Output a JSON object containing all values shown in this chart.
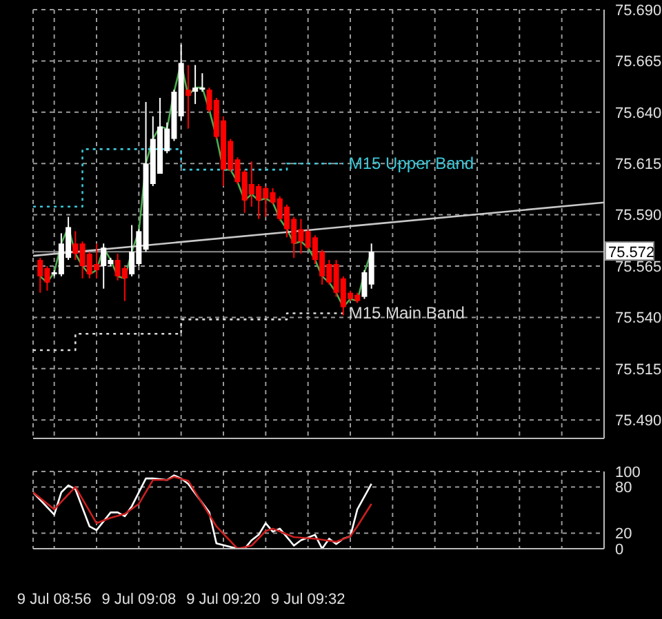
{
  "chart_data": [
    {
      "type": "candlestick",
      "x": [
        "--07-09T08:54",
        "--07-09T08:55",
        "--07-09T08:56",
        "--07-09T08:57",
        "--07-09T08:58",
        "--07-09T08:59",
        "--07-09T09:00",
        "--07-09T09:01",
        "--07-09T09:02",
        "--07-09T09:03",
        "--07-09T09:04",
        "--07-09T09:05",
        "--07-09T09:06",
        "--07-09T09:07",
        "--07-09T09:08",
        "--07-09T09:09",
        "--07-09T09:10",
        "--07-09T09:11",
        "--07-09T09:12",
        "--07-09T09:13",
        "--07-09T09:14",
        "--07-09T09:15",
        "--07-09T09:16",
        "--07-09T09:17",
        "--07-09T09:18",
        "--07-09T09:19",
        "--07-09T09:20",
        "--07-09T09:21",
        "--07-09T09:22",
        "--07-09T09:23",
        "--07-09T09:24",
        "--07-09T09:25",
        "--07-09T09:26",
        "--07-09T09:27",
        "--07-09T09:28",
        "--07-09T09:29",
        "--07-09T09:30",
        "--07-09T09:31",
        "--07-09T09:32",
        "--07-09T09:33",
        "--07-09T09:34",
        "--07-09T09:35",
        "--07-09T09:36",
        "--07-09T09:37",
        "--07-09T09:38",
        "--07-09T09:39",
        "--07-09T09:40",
        "--07-09T09:41"
      ],
      "ohlc": [
        [
          75.568,
          75.569,
          75.552,
          75.56
        ],
        [
          75.564,
          75.565,
          75.553,
          75.557
        ],
        [
          75.561,
          75.563,
          75.56,
          75.562
        ],
        [
          75.561,
          75.581,
          75.56,
          75.576
        ],
        [
          75.569,
          75.589,
          75.568,
          75.584
        ],
        [
          75.576,
          75.582,
          75.568,
          75.571
        ],
        [
          75.576,
          75.577,
          75.559,
          75.565
        ],
        [
          75.571,
          75.572,
          75.559,
          75.561
        ],
        [
          75.566,
          75.576,
          75.559,
          75.563
        ],
        [
          75.565,
          75.576,
          75.554,
          75.574
        ],
        [
          75.566,
          75.569,
          75.565,
          75.568
        ],
        [
          75.568,
          75.571,
          75.558,
          75.56
        ],
        [
          75.564,
          75.565,
          75.548,
          75.559
        ],
        [
          75.561,
          75.585,
          75.56,
          75.572
        ],
        [
          75.566,
          75.583,
          75.565,
          75.582
        ],
        [
          75.573,
          75.645,
          75.572,
          75.615
        ],
        [
          75.605,
          75.638,
          75.604,
          75.627
        ],
        [
          75.61,
          75.647,
          75.61,
          75.633
        ],
        [
          75.621,
          75.635,
          75.62,
          75.632
        ],
        [
          75.627,
          75.651,
          75.626,
          75.65
        ],
        [
          75.638,
          75.673,
          75.636,
          75.664
        ],
        [
          75.651,
          75.663,
          75.632,
          75.648
        ],
        [
          75.65,
          75.663,
          75.644,
          75.652
        ],
        [
          75.651,
          75.659,
          75.65,
          75.652
        ],
        [
          75.651,
          75.652,
          75.64,
          75.641
        ],
        [
          75.646,
          75.647,
          75.627,
          75.628
        ],
        [
          75.636,
          75.638,
          75.604,
          75.612
        ],
        [
          75.626,
          75.627,
          75.611,
          75.612
        ],
        [
          75.617,
          75.618,
          75.605,
          75.606
        ],
        [
          75.611,
          75.612,
          75.591,
          75.597
        ],
        [
          75.605,
          75.616,
          75.594,
          75.6
        ],
        [
          75.604,
          75.605,
          75.588,
          75.597
        ],
        [
          75.603,
          75.604,
          75.589,
          75.598
        ],
        [
          75.601,
          75.603,
          75.595,
          75.596
        ],
        [
          75.598,
          75.599,
          75.587,
          75.588
        ],
        [
          75.594,
          75.595,
          75.579,
          75.583
        ],
        [
          75.588,
          75.589,
          75.569,
          75.576
        ],
        [
          75.583,
          75.588,
          75.571,
          75.577
        ],
        [
          75.582,
          75.583,
          75.573,
          75.574
        ],
        [
          75.579,
          75.58,
          75.566,
          75.568
        ],
        [
          75.572,
          75.573,
          75.556,
          75.56
        ],
        [
          75.566,
          75.568,
          75.556,
          75.557
        ],
        [
          75.566,
          75.568,
          75.55,
          75.552
        ],
        [
          75.559,
          75.56,
          75.541,
          75.545
        ],
        [
          75.552,
          75.553,
          75.548,
          75.549
        ],
        [
          75.551,
          75.552,
          75.547,
          75.548
        ],
        [
          75.55,
          75.563,
          75.549,
          75.562
        ],
        [
          75.556,
          75.576,
          75.554,
          75.572
        ]
      ],
      "colors": [
        "#ff0000",
        "#ff0000",
        "#ffffff",
        "#ffffff",
        "#ffffff",
        "#ff0000",
        "#ff0000",
        "#ff0000",
        "#ff0000",
        "#ffffff",
        "#ffffff",
        "#ff0000",
        "#ff0000",
        "#ffffff",
        "#ffffff",
        "#ffffff",
        "#ffffff",
        "#ffffff",
        "#ffffff",
        "#ffffff",
        "#ffffff",
        "#ff0000",
        "#ffffff",
        "#ffffff",
        "#ff0000",
        "#ff0000",
        "#ff0000",
        "#ff0000",
        "#ff0000",
        "#ff0000",
        "#ff0000",
        "#ff0000",
        "#ff0000",
        "#ff0000",
        "#ff0000",
        "#ff0000",
        "#ff0000",
        "#ff0000",
        "#ff0000",
        "#ff0000",
        "#ff0000",
        "#ff0000",
        "#ff0000",
        "#ff0000",
        "#ff0000",
        "#ff0000",
        "#ffffff",
        "#ffffff"
      ],
      "series": [
        {
          "type": "line",
          "color": "#4caf50",
          "x": [
            "--07-09T08:54",
            "--07-09T08:55",
            "--07-09T08:56",
            "--07-09T08:57",
            "--07-09T08:58",
            "--07-09T08:59",
            "--07-09T09:00",
            "--07-09T09:01",
            "--07-09T09:02",
            "--07-09T09:03",
            "--07-09T09:04",
            "--07-09T09:05",
            "--07-09T09:06",
            "--07-09T09:07",
            "--07-09T09:08",
            "--07-09T09:09",
            "--07-09T09:10",
            "--07-09T09:11",
            "--07-09T09:12",
            "--07-09T09:13",
            "--07-09T09:14",
            "--07-09T09:15",
            "--07-09T09:16",
            "--07-09T09:17",
            "--07-09T09:18",
            "--07-09T09:19",
            "--07-09T09:20",
            "--07-09T09:21",
            "--07-09T09:22",
            "--07-09T09:23",
            "--07-09T09:24",
            "--07-09T09:25",
            "--07-09T09:26",
            "--07-09T09:27",
            "--07-09T09:28",
            "--07-09T09:29",
            "--07-09T09:30",
            "--07-09T09:31",
            "--07-09T09:32",
            "--07-09T09:33",
            "--07-09T09:34",
            "--07-09T09:35",
            "--07-09T09:36",
            "--07-09T09:37",
            "--07-09T09:38",
            "--07-09T09:39",
            "--07-09T09:40",
            "--07-09T09:41"
          ],
          "values": [
            75.56,
            75.557,
            75.562,
            75.576,
            75.584,
            75.571,
            75.565,
            75.561,
            75.563,
            75.574,
            75.568,
            75.56,
            75.559,
            75.572,
            75.582,
            75.615,
            75.627,
            75.633,
            75.632,
            75.65,
            75.664,
            75.648,
            75.652,
            75.652,
            75.641,
            75.628,
            75.612,
            75.612,
            75.606,
            75.597,
            75.6,
            75.597,
            75.598,
            75.596,
            75.588,
            75.583,
            75.576,
            75.577,
            75.574,
            75.568,
            75.56,
            75.557,
            75.552,
            75.545,
            75.549,
            75.548,
            75.562,
            75.572
          ]
        },
        {
          "type": "line",
          "color": "#c8c8c8",
          "x": [
            "--07-09T08:53",
            "--07-09T10:14"
          ],
          "values": [
            75.57,
            75.596
          ]
        },
        {
          "type": "step",
          "name": "M15 Upper Band",
          "color": "#3cc8d8",
          "line_style": "dotted",
          "x": [
            "--07-09T08:53",
            "--07-09T09:00",
            "--07-09T09:14",
            "--07-09T09:29",
            "--07-09T09:37"
          ],
          "values": [
            75.594,
            75.622,
            75.612,
            75.615,
            75.615
          ]
        },
        {
          "type": "step",
          "name": "M15 Main Band",
          "color": "#d8d8d8",
          "line_style": "dotted",
          "x": [
            "--07-09T08:53",
            "--07-09T08:59",
            "--07-09T09:14",
            "--07-09T09:29",
            "--07-09T09:37"
          ],
          "values": [
            75.524,
            75.532,
            75.539,
            75.542,
            75.542
          ]
        }
      ],
      "ref_lines": [
        {
          "axis": "y",
          "value": 75.572,
          "label": "75.572",
          "color": "#909090"
        }
      ],
      "xlim": [
        "--07-09T08:53",
        "--07-09T10:14"
      ],
      "xticks": [
        {
          "value": "--07-09T08:56",
          "label": null
        },
        {
          "value": "--07-09T09:02",
          "label": null
        },
        {
          "value": "--07-09T09:08",
          "label": null
        },
        {
          "value": "--07-09T09:14",
          "label": null
        },
        {
          "value": "--07-09T09:20",
          "label": null
        },
        {
          "value": "--07-09T09:26",
          "label": null
        },
        {
          "value": "--07-09T09:32",
          "label": null
        },
        {
          "value": "--07-09T09:38",
          "label": null
        },
        {
          "value": "--07-09T09:44",
          "label": null
        },
        {
          "value": "--07-09T09:50",
          "label": null
        },
        {
          "value": "--07-09T09:56",
          "label": null
        },
        {
          "value": "--07-09T10:02",
          "label": null
        },
        {
          "value": "--07-09T10:08",
          "label": null
        }
      ],
      "ylim": [
        75.481,
        75.69
      ],
      "yticks": [
        {
          "value": 75.49,
          "label": "75.490"
        },
        75.515,
        {
          "value": 75.54,
          "label": "75.540"
        },
        75.565,
        {
          "value": 75.59,
          "label": "75.590"
        },
        75.615,
        {
          "value": 75.64,
          "label": "75.640"
        },
        75.665,
        {
          "value": 75.69,
          "label": "75.690"
        }
      ],
      "grid": true,
      "legend": false,
      "marker": "none",
      "tick_labels": "y"
    },
    {
      "type": "line",
      "series": [
        {
          "color": "#ffffff",
          "x": [
            "--07-09T08:53",
            "--07-09T08:56",
            "--07-09T08:57",
            "--07-09T08:58",
            "--07-09T08:59",
            "--07-09T09:01",
            "--07-09T09:02",
            "--07-09T09:04",
            "--07-09T09:05",
            "--07-09T09:06",
            "--07-09T09:07",
            "--07-09T09:09",
            "--07-09T09:10",
            "--07-09T09:12",
            "--07-09T09:13",
            "--07-09T09:14",
            "--07-09T09:15",
            "--07-09T09:18",
            "--07-09T09:19",
            "--07-09T09:22",
            "--07-09T09:23",
            "--07-09T09:24",
            "--07-09T09:25",
            "--07-09T09:26",
            "--07-09T09:27",
            "--07-09T09:28",
            "--07-09T09:29",
            "--07-09T09:30",
            "--07-09T09:31",
            "--07-09T09:33",
            "--07-09T09:34",
            "--07-09T09:35",
            "--07-09T09:36",
            "--07-09T09:37",
            "--07-09T09:38",
            "--07-09T09:39",
            "--07-09T09:41"
          ],
          "values": [
            73,
            44,
            73,
            82,
            77,
            29,
            24,
            47,
            47,
            42,
            55,
            91,
            91,
            89,
            95,
            91,
            84,
            47,
            7,
            0,
            0,
            11,
            18,
            33,
            22,
            26,
            15,
            4,
            11,
            18,
            0,
            13,
            6,
            13,
            16,
            51,
            84
          ]
        },
        {
          "color": "#cc1f1f",
          "x": [
            "--07-09T08:53",
            "--07-09T08:56",
            "--07-09T08:59",
            "--07-09T09:02",
            "--07-09T09:04",
            "--07-09T09:06",
            "--07-09T09:08",
            "--07-09T09:10",
            "--07-09T09:12",
            "--07-09T09:13",
            "--07-09T09:15",
            "--07-09T09:19",
            "--07-09T09:22",
            "--07-09T09:24",
            "--07-09T09:26",
            "--07-09T09:27",
            "--07-09T09:30",
            "--07-09T09:33",
            "--07-09T09:36",
            "--07-09T09:38",
            "--07-09T09:39",
            "--07-09T09:41"
          ],
          "values": [
            73,
            51,
            80,
            33,
            40,
            45,
            58,
            89,
            89,
            93,
            88,
            29,
            0,
            4,
            23,
            26,
            15,
            13,
            9,
            16,
            29,
            58
          ]
        }
      ],
      "xlim": [
        "--07-09T08:53",
        "--07-09T10:14"
      ],
      "xticks": [
        {
          "value": "--07-09T08:56",
          "label": "9 Jul 08:56"
        },
        {
          "value": "--07-09T09:02",
          "label": null
        },
        {
          "value": "--07-09T09:08",
          "label": "9 Jul 09:08"
        },
        {
          "value": "--07-09T09:14",
          "label": null
        },
        {
          "value": "--07-09T09:20",
          "label": "9 Jul 09:20"
        },
        {
          "value": "--07-09T09:26",
          "label": null
        },
        {
          "value": "--07-09T09:32",
          "label": "9 Jul 09:32"
        },
        {
          "value": "--07-09T09:38",
          "label": null
        },
        {
          "value": "--07-09T09:44",
          "label": null
        },
        {
          "value": "--07-09T09:50",
          "label": null
        },
        {
          "value": "--07-09T09:56",
          "label": null
        },
        {
          "value": "--07-09T10:02",
          "label": null
        },
        {
          "value": "--07-09T10:08",
          "label": null
        }
      ],
      "ylim": [
        0,
        100
      ],
      "yticks": [
        0,
        20,
        80,
        100
      ],
      "grid": true,
      "legend": false,
      "marker": "none",
      "line_style": "solid"
    }
  ]
}
